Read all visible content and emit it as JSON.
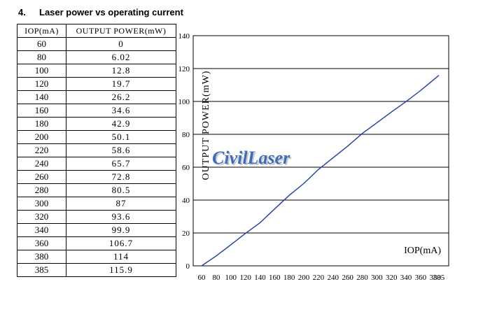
{
  "section": {
    "number": "4.",
    "title": "Laser power vs operating current"
  },
  "table": {
    "headers": [
      "IOP(mA)",
      "OUTPUT POWER(mW)"
    ],
    "rows": [
      [
        "60",
        "0"
      ],
      [
        "80",
        "6.02"
      ],
      [
        "100",
        "12.8"
      ],
      [
        "120",
        "19.7"
      ],
      [
        "140",
        "26.2"
      ],
      [
        "160",
        "34.6"
      ],
      [
        "180",
        "42.9"
      ],
      [
        "200",
        "50.1"
      ],
      [
        "220",
        "58.6"
      ],
      [
        "240",
        "65.7"
      ],
      [
        "260",
        "72.8"
      ],
      [
        "280",
        "80.5"
      ],
      [
        "300",
        "87"
      ],
      [
        "320",
        "93.6"
      ],
      [
        "340",
        "99.9"
      ],
      [
        "360",
        "106.7"
      ],
      [
        "380",
        "114"
      ],
      [
        "385",
        "115.9"
      ]
    ]
  },
  "watermark": "CivilLaser",
  "chart_data": {
    "type": "line",
    "xlabel": "IOP(mA)",
    "ylabel": "OUTPUT POWER(mW)",
    "x_ticks": [
      "60",
      "80",
      "100",
      "120",
      "140",
      "160",
      "180",
      "200",
      "220",
      "240",
      "260",
      "280",
      "300",
      "320",
      "340",
      "360",
      "380",
      "385"
    ],
    "y_ticks": [
      0,
      20,
      40,
      60,
      80,
      100,
      120,
      140
    ],
    "ylim": [
      0,
      140
    ],
    "grid": "horizontal",
    "series": [
      {
        "values": [
          0,
          6.02,
          12.8,
          19.7,
          26.2,
          34.6,
          42.9,
          50.1,
          58.6,
          65.7,
          72.8,
          80.5,
          87,
          93.6,
          99.9,
          106.7,
          114,
          115.9
        ]
      }
    ],
    "colors": {
      "line": "#1f3ea8",
      "grid": "#000000",
      "watermark": "#1e56b4",
      "watermark_shadow": "#c9c9c9",
      "watermark_accent": "#2fa84f"
    }
  }
}
